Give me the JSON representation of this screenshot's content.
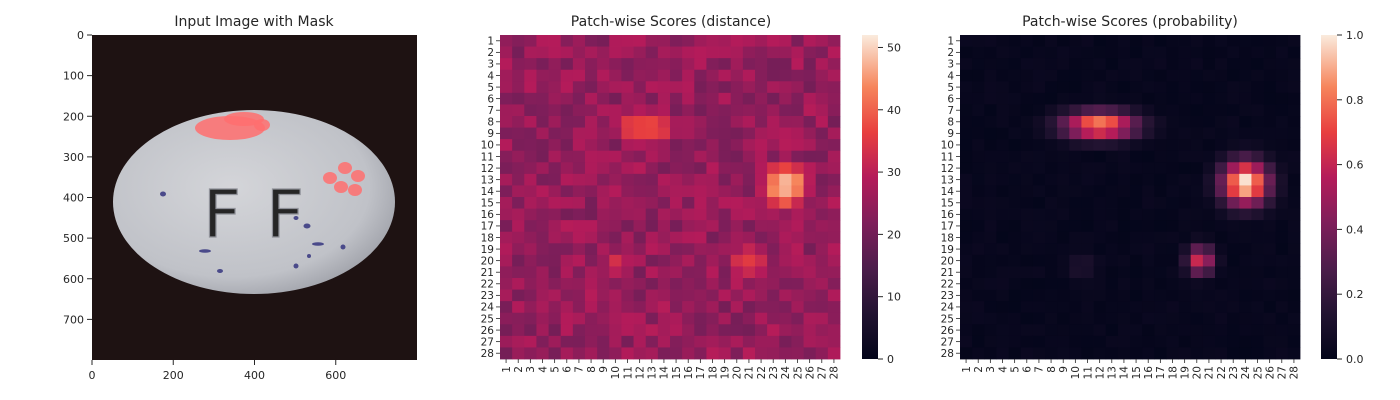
{
  "panels": [
    {
      "title": "Input Image with Mask",
      "x_ticks": [
        "0",
        "200",
        "400",
        "600"
      ],
      "y_ticks": [
        "0",
        "100",
        "200",
        "300",
        "400",
        "500",
        "600",
        "700"
      ]
    },
    {
      "title": "Patch-wise Scores (distance)",
      "colorbar_ticks": [
        "0",
        "10",
        "20",
        "30",
        "40",
        "50"
      ]
    },
    {
      "title": "Patch-wise Scores (probability)",
      "colorbar_ticks": [
        "0.0",
        "0.2",
        "0.4",
        "0.6",
        "0.8",
        "1.0"
      ]
    }
  ],
  "chart_data": [
    {
      "type": "image",
      "title": "Input Image with Mask",
      "xlim": [
        0,
        800
      ],
      "ylim": [
        800,
        0
      ],
      "x_ticks": [
        0,
        200,
        400,
        600
      ],
      "y_ticks": [
        0,
        100,
        200,
        300,
        400,
        500,
        600,
        700
      ],
      "mask_color": "#ff6f6f"
    },
    {
      "type": "heatmap",
      "title": "Patch-wise Scores (distance)",
      "rows": 28,
      "cols": 28,
      "row_labels": [
        "1",
        "2",
        "3",
        "4",
        "5",
        "6",
        "7",
        "8",
        "9",
        "10",
        "11",
        "12",
        "13",
        "14",
        "15",
        "16",
        "17",
        "18",
        "19",
        "20",
        "21",
        "22",
        "23",
        "24",
        "25",
        "26",
        "27",
        "28"
      ],
      "col_labels": [
        "1",
        "2",
        "3",
        "4",
        "5",
        "6",
        "7",
        "8",
        "9",
        "10",
        "11",
        "12",
        "13",
        "14",
        "15",
        "16",
        "17",
        "18",
        "19",
        "20",
        "21",
        "22",
        "23",
        "24",
        "25",
        "26",
        "27",
        "28"
      ],
      "value_range": [
        0,
        52
      ],
      "colormap": "rocket",
      "base_value": 25,
      "hotspots": [
        {
          "row": 8.5,
          "col": 12.5,
          "peak": 40,
          "sigma_r": 1.8,
          "sigma_c": 3.0
        },
        {
          "row": 13.5,
          "col": 24.0,
          "peak": 50,
          "sigma_r": 2.0,
          "sigma_c": 2.0
        },
        {
          "row": 20.0,
          "col": 21.0,
          "peak": 36,
          "sigma_r": 2.0,
          "sigma_c": 2.0
        },
        {
          "row": 20.5,
          "col": 10.0,
          "peak": 33,
          "sigma_r": 1.8,
          "sigma_c": 1.8
        }
      ]
    },
    {
      "type": "heatmap",
      "title": "Patch-wise Scores (probability)",
      "rows": 28,
      "cols": 28,
      "row_labels": [
        "1",
        "2",
        "3",
        "4",
        "5",
        "6",
        "7",
        "8",
        "9",
        "10",
        "11",
        "12",
        "13",
        "14",
        "15",
        "16",
        "17",
        "18",
        "19",
        "20",
        "21",
        "22",
        "23",
        "24",
        "25",
        "26",
        "27",
        "28"
      ],
      "col_labels": [
        "1",
        "2",
        "3",
        "4",
        "5",
        "6",
        "7",
        "8",
        "9",
        "10",
        "11",
        "12",
        "13",
        "14",
        "15",
        "16",
        "17",
        "18",
        "19",
        "20",
        "21",
        "22",
        "23",
        "24",
        "25",
        "26",
        "27",
        "28"
      ],
      "value_range": [
        0,
        1
      ],
      "colormap": "rocket",
      "base_value": 0.02,
      "hotspots": [
        {
          "row": 8.3,
          "col": 12.0,
          "peak": 0.85,
          "sigma_r": 0.9,
          "sigma_c": 2.2
        },
        {
          "row": 13.3,
          "col": 24.0,
          "peak": 1.0,
          "sigma_r": 1.4,
          "sigma_c": 1.4
        },
        {
          "row": 20.0,
          "col": 20.3,
          "peak": 0.65,
          "sigma_r": 0.9,
          "sigma_c": 0.8
        },
        {
          "row": 20.5,
          "col": 10.5,
          "peak": 0.12,
          "sigma_r": 1.0,
          "sigma_c": 1.0
        }
      ]
    }
  ]
}
